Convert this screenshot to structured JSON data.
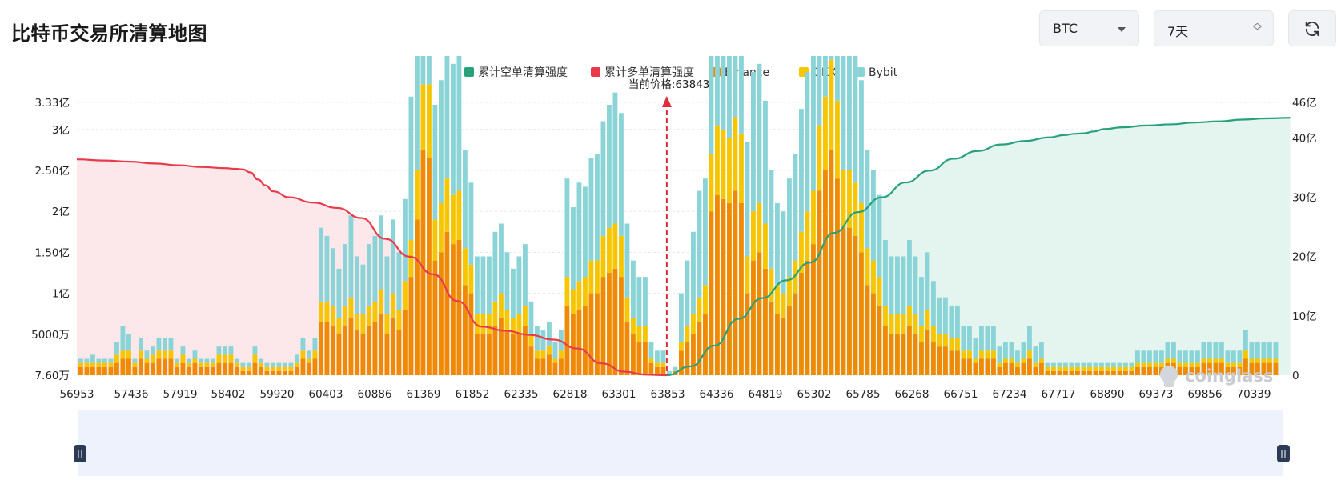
{
  "header": {
    "title": "比特币交易所清算地图"
  },
  "controls": {
    "coin": "BTC",
    "range": "7天"
  },
  "watermark": "coinglass",
  "colors": {
    "short_cum": "#26a17b",
    "long_cum": "#e83a4a",
    "binance": "#f08a05",
    "okx": "#f7c600",
    "bybit": "#8ad4d8"
  },
  "chart_data": {
    "type": "bar",
    "title": "",
    "legend": {
      "position": "top-center",
      "items": [
        "累计空单清算强度",
        "累计多单清算强度",
        "Binance",
        "OKX",
        "Bybit"
      ]
    },
    "current_price": 63843,
    "current_price_label": "当前价格:63843",
    "x_ticks": [
      "56953",
      "57436",
      "57919",
      "58402",
      "59920",
      "60403",
      "60886",
      "61369",
      "61852",
      "62335",
      "62818",
      "63301",
      "63853",
      "64336",
      "64819",
      "65302",
      "65785",
      "66268",
      "66751",
      "67234",
      "67717",
      "68890",
      "69373",
      "69856",
      "70339"
    ],
    "y_left_ticks": [
      "7.60万",
      "5000万",
      "1亿",
      "1.50亿",
      "2亿",
      "2.50亿",
      "3亿",
      "3.33亿"
    ],
    "y_left_values": [
      76000,
      50000000,
      100000000,
      150000000,
      200000000,
      250000000,
      300000000,
      333000000
    ],
    "y_left_range": [
      76000,
      333000000
    ],
    "y_right_ticks": [
      "0",
      "10亿",
      "20亿",
      "30亿",
      "40亿",
      "46亿"
    ],
    "y_right_values": [
      0,
      1000000000,
      2000000000,
      3000000000,
      4000000000,
      4600000000
    ],
    "y_right_range": [
      0,
      4600000000
    ],
    "grid": true,
    "long_cumulative": {
      "name": "累计多单清算强度",
      "x_range": [
        56953,
        63843
      ],
      "y": [
        3640000000,
        3620000000,
        3600000000,
        3570000000,
        3540000000,
        3510000000,
        3490000000,
        3480000000,
        3470000000,
        3420000000,
        3300000000,
        3200000000,
        3100000000,
        3000000000,
        2910000000,
        2820000000,
        2650000000,
        2300000000,
        2000000000,
        1700000000,
        1250000000,
        820000000,
        750000000,
        680000000,
        600000000,
        450000000,
        200000000,
        60000000,
        10000000,
        0
      ]
    },
    "short_cumulative": {
      "name": "累计空单清算强度",
      "x_range": [
        63843,
        70700
      ],
      "y": [
        0,
        150000000,
        500000000,
        950000000,
        1300000000,
        1600000000,
        1900000000,
        2400000000,
        2750000000,
        3000000000,
        3250000000,
        3450000000,
        3650000000,
        3780000000,
        3890000000,
        3950000000,
        4010000000,
        4050000000,
        4070000000,
        4080000000,
        4110000000,
        4150000000,
        4180000000,
        4210000000,
        4230000000,
        4260000000,
        4280000000,
        4310000000,
        4330000000,
        4340000000
      ]
    },
    "bars": {
      "binance": [
        2,
        2,
        2,
        2,
        2,
        2,
        3,
        4,
        4,
        2,
        4,
        3,
        3,
        4,
        4,
        4,
        2,
        3,
        2,
        3,
        2,
        2,
        2,
        3,
        3,
        3,
        2,
        1,
        1,
        3,
        2,
        1,
        1,
        1,
        1,
        1,
        2,
        4,
        3,
        4,
        13,
        13,
        12,
        10,
        12,
        14,
        11,
        10,
        12,
        13,
        15,
        10,
        14,
        11,
        16,
        24,
        38,
        55,
        53,
        28,
        30,
        35,
        32,
        33,
        22,
        20,
        10,
        10,
        10,
        12,
        14,
        11,
        10,
        10,
        12,
        7,
        4,
        4,
        5,
        3,
        4,
        17,
        15,
        16,
        17,
        20,
        20,
        24,
        25,
        26,
        24,
        13,
        10,
        8,
        8,
        3,
        2,
        2,
        0,
        1,
        6,
        8,
        10,
        13,
        15,
        40,
        44,
        43,
        42,
        45,
        42,
        20,
        28,
        30,
        26,
        18,
        15,
        14,
        17,
        20,
        25,
        28,
        32,
        45,
        50,
        55,
        48,
        36,
        36,
        34,
        30,
        22,
        20,
        17,
        12,
        10,
        10,
        10,
        12,
        10,
        8,
        11,
        8,
        7,
        7,
        6,
        6,
        4,
        4,
        3,
        4,
        4,
        4,
        2,
        3,
        3,
        2,
        3,
        4,
        2,
        3,
        1,
        1,
        1,
        1,
        1,
        1,
        1,
        1,
        1,
        1,
        1,
        1,
        1,
        1,
        1,
        2,
        2,
        2,
        2,
        2,
        3,
        3,
        2,
        2,
        2,
        2,
        3,
        3,
        3,
        3,
        2,
        2,
        2,
        4,
        3,
        3,
        3,
        3,
        3
      ],
      "okx": [
        1,
        1,
        1,
        1,
        1,
        1,
        2,
        2,
        2,
        1,
        2,
        1,
        2,
        2,
        2,
        2,
        1,
        2,
        1,
        1,
        1,
        1,
        1,
        2,
        2,
        2,
        1,
        1,
        1,
        2,
        1,
        1,
        1,
        1,
        1,
        1,
        1,
        2,
        1,
        2,
        5,
        5,
        5,
        4,
        5,
        5,
        4,
        5,
        5,
        5,
        6,
        5,
        6,
        5,
        7,
        9,
        12,
        16,
        18,
        10,
        12,
        13,
        12,
        12,
        9,
        7,
        5,
        5,
        5,
        6,
        6,
        5,
        4,
        5,
        5,
        3,
        2,
        2,
        2,
        1,
        2,
        7,
        6,
        7,
        7,
        8,
        8,
        10,
        11,
        11,
        10,
        6,
        4,
        4,
        4,
        1,
        1,
        1,
        0,
        0,
        2,
        4,
        5,
        6,
        7,
        14,
        17,
        17,
        16,
        18,
        17,
        9,
        12,
        12,
        11,
        8,
        7,
        6,
        7,
        8,
        10,
        12,
        13,
        16,
        18,
        22,
        19,
        14,
        14,
        13,
        12,
        9,
        8,
        7,
        5,
        5,
        5,
        5,
        5,
        5,
        4,
        5,
        4,
        3,
        3,
        3,
        3,
        2,
        2,
        1,
        2,
        2,
        2,
        1,
        1,
        1,
        1,
        1,
        2,
        1,
        1,
        1,
        1,
        1,
        1,
        1,
        1,
        1,
        1,
        1,
        1,
        1,
        1,
        1,
        1,
        1,
        1,
        1,
        1,
        1,
        1,
        1,
        1,
        1,
        1,
        1,
        1,
        1,
        1,
        1,
        1,
        1,
        1,
        1,
        2,
        1,
        1,
        1,
        1,
        1
      ],
      "bybit": [
        1,
        1,
        2,
        1,
        1,
        1,
        3,
        6,
        4,
        1,
        3,
        2,
        2,
        3,
        3,
        3,
        1,
        2,
        1,
        2,
        1,
        1,
        1,
        2,
        2,
        2,
        1,
        1,
        1,
        2,
        1,
        1,
        1,
        1,
        1,
        1,
        2,
        3,
        2,
        3,
        18,
        16,
        14,
        12,
        15,
        20,
        14,
        12,
        15,
        16,
        18,
        14,
        18,
        14,
        20,
        35,
        55,
        60,
        50,
        28,
        30,
        32,
        32,
        35,
        24,
        20,
        14,
        14,
        14,
        17,
        17,
        14,
        12,
        14,
        15,
        8,
        6,
        5,
        6,
        4,
        5,
        24,
        20,
        24,
        22,
        25,
        26,
        28,
        30,
        32,
        30,
        18,
        14,
        12,
        12,
        4,
        3,
        3,
        1,
        1,
        12,
        16,
        20,
        26,
        26,
        36,
        38,
        38,
        35,
        37,
        40,
        28,
        34,
        34,
        30,
        24,
        20,
        20,
        24,
        26,
        30,
        34,
        36,
        36,
        40,
        50,
        42,
        36,
        36,
        34,
        30,
        24,
        22,
        20,
        16,
        14,
        14,
        14,
        16,
        14,
        12,
        14,
        11,
        9,
        9,
        8,
        8,
        6,
        6,
        5,
        6,
        6,
        6,
        4,
        4,
        4,
        3,
        4,
        6,
        4,
        4,
        1,
        1,
        1,
        1,
        1,
        1,
        1,
        1,
        1,
        1,
        1,
        1,
        1,
        1,
        1,
        3,
        3,
        3,
        3,
        3,
        4,
        4,
        3,
        3,
        3,
        3,
        4,
        4,
        4,
        4,
        3,
        3,
        3,
        5,
        4,
        4,
        4,
        4,
        4
      ]
    }
  }
}
